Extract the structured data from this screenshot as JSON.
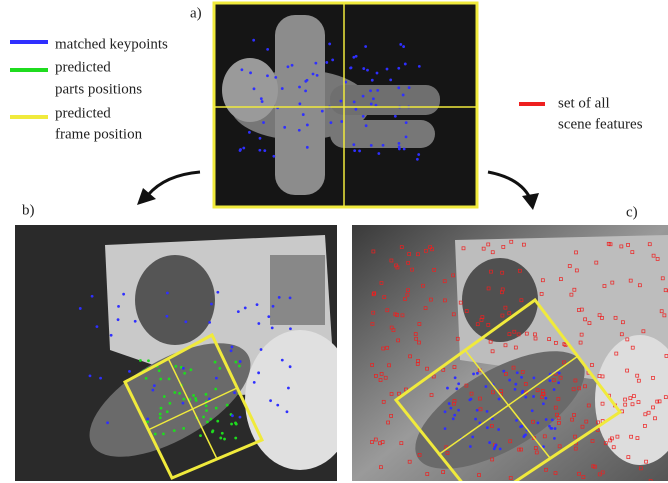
{
  "panels": {
    "a": "a)",
    "b": "b)",
    "c": "c)"
  },
  "legend": [
    {
      "lines": [
        "matched keypoints"
      ],
      "color": "#2f2fff"
    },
    {
      "lines": [
        "predicted",
        "parts positions"
      ],
      "color": "#1fdc1f"
    },
    {
      "lines": [
        "predicted",
        "frame position"
      ],
      "color": "#f0ea3c"
    },
    {
      "lines": [
        "set of all",
        "scene features"
      ],
      "color": "#ee2020"
    }
  ]
}
